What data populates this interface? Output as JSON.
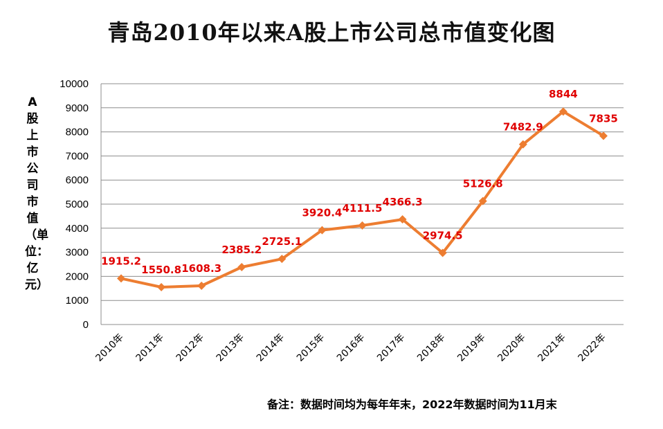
{
  "chart_data": {
    "type": "line",
    "title": "青岛2010年以来A股上市公司总市值变化图",
    "ylabel": "A股上市公司市值（单位：亿元）",
    "xlabel": "",
    "note": "备注：数据时间均为每年年末，2022年数据时间为11月末",
    "categories": [
      "2010年",
      "2011年",
      "2012年",
      "2013年",
      "2014年",
      "2015年",
      "2016年",
      "2017年",
      "2018年",
      "2019年",
      "2020年",
      "2021年",
      "2022年"
    ],
    "series": [
      {
        "values": [
          1915.2,
          1550.8,
          1608.3,
          2385.2,
          2725.1,
          3920.4,
          4111.5,
          4366.3,
          2974.5,
          5126.8,
          7482.9,
          8844,
          7835
        ]
      }
    ],
    "data_labels": [
      "1915.2",
      "1550.8",
      "1608.3",
      "2385.2",
      "2725.1",
      "3920.4",
      "4111.5",
      "4366.3",
      "2974.5",
      "5126.8",
      "7482.9",
      "8844",
      "7835"
    ],
    "ylim": [
      0,
      10000
    ],
    "yticks": [
      0,
      1000,
      2000,
      3000,
      4000,
      5000,
      6000,
      7000,
      8000,
      9000,
      10000
    ],
    "grid": true,
    "legend": "none",
    "colors": {
      "line": "#ED7D31",
      "labels": "#E00000",
      "grid": "#8C8C8C"
    }
  }
}
